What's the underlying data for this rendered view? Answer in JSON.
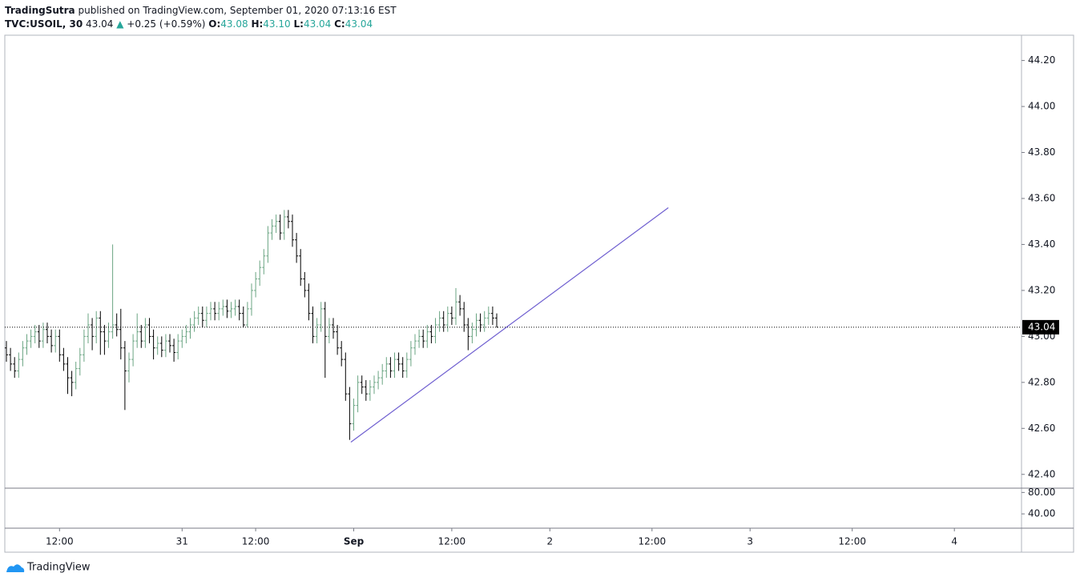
{
  "chart_data": {
    "type": "ohlc",
    "publisher": "TradingSutra",
    "published": "published on TradingView.com, September 01, 2020 07:13:16 EST",
    "symbol": "TVC:USOIL, 30",
    "change": "+0.25 (+0.59%)",
    "ohlc_legend": [
      {
        "label": "O:",
        "value": "43.08"
      },
      {
        "label": "H:",
        "value": "43.10"
      },
      {
        "label": "L:",
        "value": "43.04"
      },
      {
        "label": "C:",
        "value": "43.04"
      }
    ],
    "branding": "TradingView",
    "up_color": "#6ba583",
    "down_color": "#000000",
    "legend_value_color": "#26a69a",
    "open": [
      42.95,
      42.92,
      42.88,
      42.85,
      42.9,
      42.95,
      42.98,
      43.0,
      43.02,
      42.98,
      43.03,
      43.0,
      42.96,
      43.0,
      42.92,
      42.88,
      42.82,
      42.8,
      42.86,
      42.92,
      43.0,
      43.05,
      43.0,
      43.08,
      43.02,
      42.98,
      43.02,
      43.05,
      43.03,
      42.95,
      42.85,
      42.9,
      42.98,
      43.02,
      42.98,
      43.05,
      43.0,
      42.95,
      42.97,
      42.94,
      42.98,
      42.96,
      42.93,
      42.98,
      43.0,
      43.02,
      43.05,
      43.08,
      43.1,
      43.07,
      43.1,
      43.12,
      43.1,
      43.12,
      43.13,
      43.11,
      43.12,
      43.13,
      43.1,
      43.05,
      43.12,
      43.2,
      43.25,
      43.3,
      43.35,
      43.45,
      43.48,
      43.5,
      43.45,
      43.52,
      43.5,
      43.42,
      43.35,
      43.25,
      43.2,
      43.1,
      43.0,
      43.05,
      43.12,
      43.0,
      43.05,
      43.02,
      42.95,
      42.9,
      42.75,
      42.62,
      42.7,
      42.8,
      42.78,
      42.75,
      42.78,
      42.8,
      42.82,
      42.85,
      42.88,
      42.85,
      42.9,
      42.88,
      42.85,
      42.9,
      42.95,
      42.98,
      43.0,
      42.98,
      43.02,
      43.0,
      43.05,
      43.08,
      43.05,
      43.1,
      43.08,
      43.15,
      43.12,
      43.05,
      43.0,
      43.03,
      43.07,
      43.05,
      43.08,
      43.1,
      43.08
    ],
    "high": [
      42.98,
      42.95,
      42.91,
      42.93,
      42.98,
      43.01,
      43.03,
      43.05,
      43.05,
      43.06,
      43.06,
      43.03,
      43.03,
      43.03,
      42.95,
      42.91,
      42.85,
      42.89,
      42.95,
      43.03,
      43.1,
      43.08,
      43.11,
      43.11,
      43.05,
      43.06,
      43.4,
      43.1,
      43.12,
      42.98,
      42.93,
      43.01,
      43.1,
      43.05,
      43.08,
      43.08,
      43.03,
      43.0,
      43.0,
      43.01,
      43.01,
      42.99,
      43.01,
      43.03,
      43.05,
      43.08,
      43.11,
      43.13,
      43.13,
      43.13,
      43.15,
      43.15,
      43.15,
      43.16,
      43.16,
      43.15,
      43.16,
      43.16,
      43.13,
      43.15,
      43.23,
      43.28,
      43.33,
      43.38,
      43.48,
      43.51,
      43.53,
      43.53,
      43.55,
      43.55,
      43.53,
      43.45,
      43.38,
      43.28,
      43.23,
      43.13,
      43.08,
      43.15,
      43.15,
      43.08,
      43.08,
      43.05,
      42.98,
      42.93,
      42.78,
      42.73,
      42.83,
      42.83,
      42.81,
      42.81,
      42.83,
      42.85,
      42.88,
      42.91,
      42.91,
      42.93,
      42.93,
      42.91,
      42.93,
      42.98,
      43.01,
      43.03,
      43.03,
      43.05,
      43.05,
      43.08,
      43.11,
      43.11,
      43.13,
      43.13,
      43.21,
      43.18,
      43.15,
      43.08,
      43.06,
      43.1,
      43.1,
      43.11,
      43.13,
      43.13,
      43.1
    ],
    "low": [
      42.89,
      42.85,
      42.82,
      42.82,
      42.87,
      42.92,
      42.95,
      42.97,
      42.95,
      42.95,
      42.97,
      42.93,
      42.93,
      42.89,
      42.85,
      42.75,
      42.74,
      42.77,
      42.83,
      42.89,
      42.97,
      42.94,
      42.97,
      42.92,
      42.92,
      42.95,
      42.99,
      43.0,
      42.9,
      42.68,
      42.8,
      42.87,
      42.95,
      42.95,
      42.95,
      42.97,
      42.9,
      42.92,
      42.91,
      42.91,
      42.93,
      42.89,
      42.9,
      42.95,
      42.97,
      42.99,
      43.02,
      43.05,
      43.04,
      43.04,
      43.07,
      43.07,
      43.07,
      43.09,
      43.08,
      43.08,
      43.09,
      43.07,
      43.04,
      43.04,
      43.09,
      43.17,
      43.22,
      43.27,
      43.32,
      43.42,
      43.45,
      43.42,
      43.42,
      43.47,
      43.39,
      43.32,
      43.22,
      43.17,
      43.07,
      42.97,
      42.97,
      43.02,
      42.82,
      42.97,
      42.99,
      42.92,
      42.87,
      42.72,
      42.55,
      42.59,
      42.67,
      42.75,
      42.72,
      42.72,
      42.75,
      42.77,
      42.79,
      42.82,
      42.82,
      42.82,
      42.85,
      42.82,
      42.82,
      42.87,
      42.92,
      42.95,
      42.95,
      42.95,
      42.97,
      42.97,
      43.02,
      43.02,
      43.02,
      43.05,
      43.05,
      43.09,
      43.02,
      42.94,
      42.97,
      43.0,
      43.02,
      43.02,
      43.05,
      43.05,
      43.04
    ],
    "close": [
      42.92,
      42.88,
      42.85,
      42.9,
      42.95,
      42.98,
      43.0,
      43.02,
      42.98,
      43.03,
      43.0,
      42.96,
      43.0,
      42.92,
      42.88,
      42.82,
      42.8,
      42.86,
      42.92,
      43.0,
      43.05,
      43.0,
      43.08,
      43.02,
      42.98,
      43.02,
      43.05,
      43.03,
      42.95,
      42.85,
      42.9,
      42.98,
      43.02,
      42.98,
      43.05,
      43.0,
      42.95,
      42.97,
      42.94,
      42.98,
      42.96,
      42.93,
      42.98,
      43.0,
      43.02,
      43.05,
      43.08,
      43.1,
      43.07,
      43.1,
      43.12,
      43.1,
      43.12,
      43.13,
      43.11,
      43.12,
      43.13,
      43.1,
      43.05,
      43.12,
      43.2,
      43.25,
      43.3,
      43.35,
      43.45,
      43.48,
      43.5,
      43.45,
      43.52,
      43.5,
      43.42,
      43.35,
      43.25,
      43.2,
      43.1,
      43.0,
      43.05,
      43.12,
      43.0,
      43.05,
      43.02,
      42.95,
      42.9,
      42.75,
      42.62,
      42.7,
      42.8,
      42.78,
      42.75,
      42.78,
      42.8,
      42.82,
      42.85,
      42.88,
      42.85,
      42.9,
      42.88,
      42.85,
      42.9,
      42.95,
      42.98,
      43.0,
      42.98,
      43.02,
      43.0,
      43.05,
      43.08,
      43.05,
      43.1,
      43.08,
      43.15,
      43.12,
      43.05,
      43.0,
      43.03,
      43.07,
      43.05,
      43.08,
      43.1,
      43.08,
      43.04
    ],
    "xticks": [
      {
        "value": 13,
        "label": "12:00"
      },
      {
        "value": 43,
        "label": "31"
      },
      {
        "value": 61,
        "label": "12:00"
      },
      {
        "value": 85,
        "label": "Sep"
      },
      {
        "value": 109,
        "label": "12:00"
      },
      {
        "value": 133,
        "label": "2"
      },
      {
        "value": 158,
        "label": "12:00"
      },
      {
        "value": 182,
        "label": "3"
      },
      {
        "value": 207,
        "label": "12:00"
      },
      {
        "value": 232,
        "label": "4"
      }
    ],
    "ylim": [
      42.34,
      44.31
    ],
    "yticks": [
      {
        "value": 42.4,
        "label": "42.40"
      },
      {
        "value": 42.6,
        "label": "42.60"
      },
      {
        "value": 42.8,
        "label": "42.80"
      },
      {
        "value": 43.0,
        "label": "43.00"
      },
      {
        "value": 43.2,
        "label": "43.20"
      },
      {
        "value": 43.4,
        "label": "43.40"
      },
      {
        "value": 43.6,
        "label": "43.60"
      },
      {
        "value": 43.8,
        "label": "43.80"
      },
      {
        "value": 44.0,
        "label": "44.00"
      },
      {
        "value": 44.2,
        "label": "44.20"
      }
    ],
    "last_price": 43.04,
    "trendline": {
      "x": [
        84.3,
        162
      ],
      "y": [
        42.54,
        43.56
      ],
      "color": "#6f5fd0"
    },
    "indicator_pane": {
      "ylim": [
        13.3,
        88
      ],
      "yticks": [
        {
          "value": 80,
          "label": "80.00"
        },
        {
          "value": 40,
          "label": "40.00"
        }
      ]
    }
  }
}
